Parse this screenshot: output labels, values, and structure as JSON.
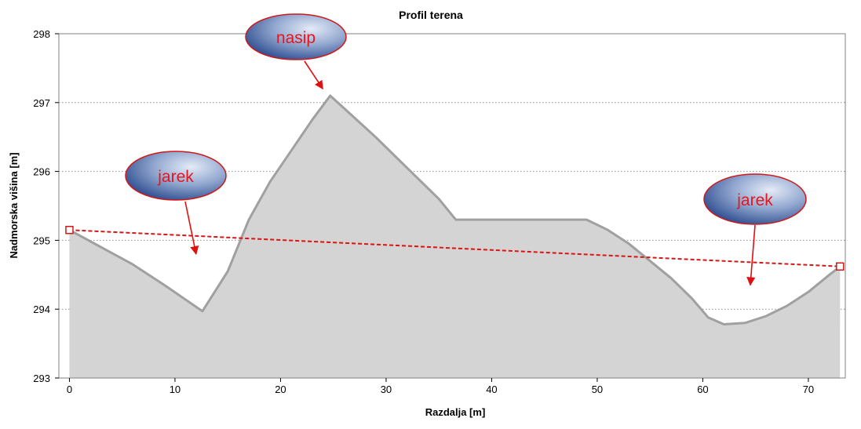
{
  "chart_data": {
    "type": "area",
    "title": "Profil terena",
    "xlabel": "Razdalja [m]",
    "ylabel": "Nadmorska višina [m]",
    "xlim": [
      -1,
      73.5
    ],
    "ylim": [
      293,
      298
    ],
    "xticks": [
      0,
      10,
      20,
      30,
      40,
      50,
      60,
      70
    ],
    "yticks": [
      293,
      294,
      295,
      296,
      297,
      298
    ],
    "grid": "horizontal dotted",
    "series": [
      {
        "role": "terrain",
        "x": [
          0,
          3,
          6,
          9,
          12.6,
          15,
          17,
          19,
          21,
          23,
          24.7,
          26.5,
          29,
          32,
          35,
          36.6,
          40,
          45,
          49,
          51,
          53,
          55,
          57,
          59,
          60.5,
          62,
          64,
          66,
          68,
          70,
          72,
          73
        ],
        "y": [
          295.15,
          294.9,
          294.65,
          294.35,
          293.97,
          294.55,
          295.3,
          295.85,
          296.3,
          296.75,
          297.1,
          296.85,
          296.5,
          296.05,
          295.6,
          295.3,
          295.3,
          295.3,
          295.3,
          295.15,
          294.95,
          294.7,
          294.45,
          294.15,
          293.88,
          293.78,
          293.8,
          293.9,
          294.05,
          294.25,
          294.5,
          294.62
        ]
      },
      {
        "role": "reference-line",
        "x": [
          0,
          73
        ],
        "y": [
          295.15,
          294.62
        ]
      }
    ],
    "annotations": [
      {
        "text": "nasip",
        "arrow_to": [
          24,
          297.2
        ]
      },
      {
        "text": "jarek",
        "arrow_to": [
          12,
          294.8
        ]
      },
      {
        "text": "jarek",
        "arrow_to": [
          64.5,
          294.35
        ]
      }
    ],
    "colors": {
      "area_fill": "#d4d4d4",
      "area_line": "#a0a0a0",
      "reference_line": "#d01818",
      "annotation_text": "#e8141e",
      "annotation_arrow": "#e01010",
      "bubble_dark": "#1e3f86",
      "bubble_light": "#e4ebf7"
    }
  }
}
